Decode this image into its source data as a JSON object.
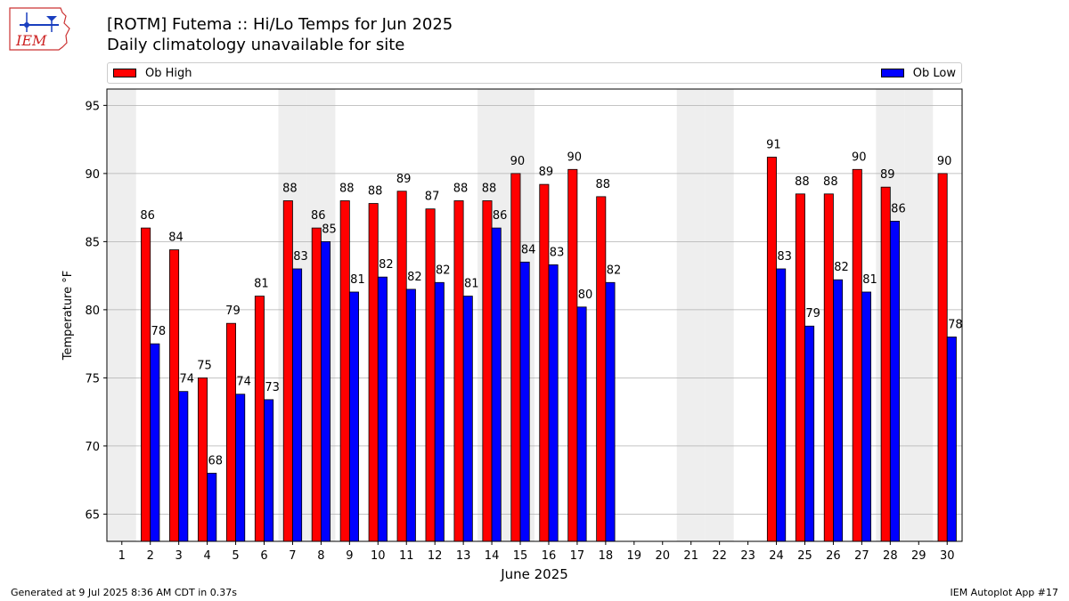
{
  "header": {
    "title": "[ROTM] Futema :: Hi/Lo Temps for Jun 2025",
    "subtitle": "Daily climatology unavailable for site",
    "logo_text": "IEM"
  },
  "legend": {
    "high_label": "Ob High",
    "low_label": "Ob Low"
  },
  "footer": {
    "left": "Generated at 9 Jul 2025 8:36 AM CDT in 0.37s",
    "right": "IEM Autoplot App #17"
  },
  "colors": {
    "high": "#ff0000",
    "low": "#0000ff",
    "weekend_band": "#eeeeee",
    "grid": "#b0b0b0"
  },
  "chart_data": {
    "type": "bar",
    "xlabel": "June 2025",
    "ylabel": "Temperature °F",
    "ylim": [
      63,
      96.2
    ],
    "yticks": [
      65,
      70,
      75,
      80,
      85,
      90,
      95
    ],
    "grid": "horizontal",
    "legend_position": "top",
    "categories": [
      "1",
      "2",
      "3",
      "4",
      "5",
      "6",
      "7",
      "8",
      "9",
      "10",
      "11",
      "12",
      "13",
      "14",
      "15",
      "16",
      "17",
      "18",
      "19",
      "20",
      "21",
      "22",
      "23",
      "24",
      "25",
      "26",
      "27",
      "28",
      "29",
      "30"
    ],
    "weekend_days": [
      "1",
      "7",
      "8",
      "14",
      "15",
      "21",
      "22",
      "28",
      "29"
    ],
    "series": [
      {
        "name": "Ob High",
        "values": [
          null,
          86.0,
          84.4,
          75.0,
          79.0,
          81.0,
          88.0,
          86.0,
          88.0,
          87.8,
          88.7,
          87.4,
          88.0,
          88.0,
          90.0,
          89.2,
          90.3,
          88.3,
          null,
          null,
          null,
          null,
          null,
          91.2,
          88.5,
          88.5,
          90.3,
          89.0,
          null,
          90.0
        ],
        "labels": [
          "",
          "86",
          "84",
          "75",
          "79",
          "81",
          "88",
          "86",
          "88",
          "88",
          "89",
          "87",
          "88",
          "88",
          "90",
          "89",
          "90",
          "88",
          "",
          "",
          "",
          "",
          "",
          "91",
          "88",
          "88",
          "90",
          "89",
          "",
          "90"
        ]
      },
      {
        "name": "Ob Low",
        "values": [
          null,
          77.5,
          74.0,
          68.0,
          73.8,
          73.4,
          83.0,
          85.0,
          81.3,
          82.4,
          81.5,
          82.0,
          81.0,
          86.0,
          83.5,
          83.3,
          80.2,
          82.0,
          null,
          null,
          null,
          null,
          null,
          83.0,
          78.8,
          82.2,
          81.3,
          86.5,
          null,
          78.0
        ],
        "labels": [
          "",
          "78",
          "74",
          "68",
          "74",
          "73",
          "83",
          "85",
          "81",
          "82",
          "82",
          "82",
          "81",
          "86",
          "84",
          "83",
          "80",
          "82",
          "",
          "",
          "",
          "",
          "",
          "83",
          "79",
          "82",
          "81",
          "86",
          "",
          "78"
        ]
      }
    ]
  }
}
